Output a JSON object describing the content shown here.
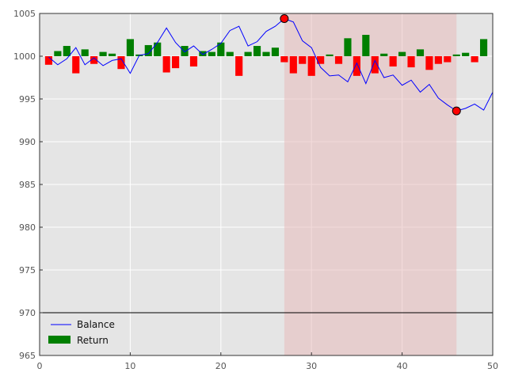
{
  "chart_data": {
    "type": "bar",
    "xlim": [
      0,
      50
    ],
    "ylim": [
      965,
      1005
    ],
    "xticks": [
      "0",
      "10",
      "20",
      "30",
      "40",
      "50"
    ],
    "yticks": [
      "965",
      "970",
      "975",
      "980",
      "985",
      "990",
      "995",
      "1000",
      "1005"
    ],
    "background": "#e5e5e5",
    "grid": true,
    "grid_color": "#ffffff",
    "legend_position": "lower-left",
    "baseline": 1000,
    "hline": 970,
    "shaded_span": {
      "x": [
        27,
        46
      ],
      "color": "#e8b8b8"
    },
    "series": [
      {
        "name": "Balance",
        "type": "line",
        "color": "#0000ff",
        "x": [
          1,
          2,
          3,
          4,
          5,
          6,
          7,
          8,
          9,
          10,
          11,
          12,
          13,
          14,
          15,
          16,
          17,
          18,
          19,
          20,
          21,
          22,
          23,
          24,
          25,
          26,
          27,
          28,
          29,
          30,
          31,
          32,
          33,
          34,
          35,
          36,
          37,
          38,
          39,
          40,
          41,
          42,
          43,
          44,
          45,
          46,
          47,
          48,
          49,
          50
        ],
        "y": [
          999.9,
          999.0,
          999.7,
          1001.0,
          999.0,
          999.8,
          998.9,
          999.5,
          999.7,
          998.0,
          1000.1,
          1000.3,
          1001.6,
          1003.3,
          1001.6,
          1000.5,
          1001.2,
          1000.2,
          1000.8,
          1001.5,
          1003.0,
          1003.5,
          1001.2,
          1001.7,
          1002.9,
          1003.5,
          1004.4,
          1004.0,
          1001.8,
          1001.0,
          998.7,
          997.7,
          997.8,
          997.0,
          999.2,
          996.8,
          999.5,
          997.5,
          997.8,
          996.6,
          997.2,
          995.8,
          996.7,
          995.1,
          994.3,
          993.6,
          993.9,
          994.4,
          993.7,
          995.8
        ]
      },
      {
        "name": "Return",
        "type": "bar",
        "color_positive": "#007f00",
        "color_negative": "#ff0000",
        "x": [
          1,
          2,
          3,
          4,
          5,
          6,
          7,
          8,
          9,
          10,
          11,
          12,
          13,
          14,
          15,
          16,
          17,
          18,
          19,
          20,
          21,
          22,
          23,
          24,
          25,
          26,
          27,
          28,
          29,
          30,
          31,
          32,
          33,
          34,
          35,
          36,
          37,
          38,
          39,
          40,
          41,
          42,
          43,
          44,
          45,
          46,
          47,
          48,
          49
        ],
        "values": [
          -1.0,
          0.6,
          1.2,
          -2.0,
          0.8,
          -0.9,
          0.5,
          0.3,
          -1.5,
          2.0,
          0.2,
          1.3,
          1.6,
          -1.9,
          -1.4,
          1.2,
          -1.2,
          0.6,
          0.5,
          1.6,
          0.5,
          -2.3,
          0.5,
          1.2,
          0.5,
          1.0,
          -0.7,
          -2.0,
          -0.9,
          -2.3,
          -0.9,
          0.2,
          -0.9,
          2.1,
          -2.3,
          2.5,
          -2.0,
          0.3,
          -1.2,
          0.5,
          -1.3,
          0.8,
          -1.6,
          -0.9,
          -0.7,
          0.2,
          0.4,
          -0.7,
          2.0
        ]
      }
    ],
    "markers": [
      {
        "x": 27,
        "y": 1004.4,
        "color": "#ff0000"
      },
      {
        "x": 46,
        "y": 993.6,
        "color": "#ff0000"
      }
    ],
    "legend": [
      {
        "label": "Balance",
        "kind": "line",
        "color": "#0000ff"
      },
      {
        "label": "Return",
        "kind": "patch",
        "color": "#007f00"
      }
    ]
  }
}
